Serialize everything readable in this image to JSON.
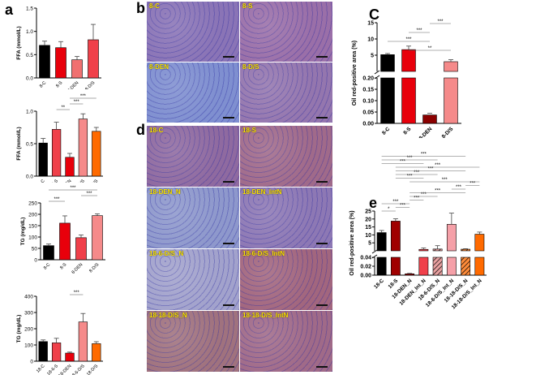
{
  "panels": {
    "a": {
      "letter": "a"
    },
    "b": {
      "letter": "b",
      "images": [
        {
          "label": "8-C",
          "tone": "#8a74b6"
        },
        {
          "label": "8-S",
          "tone": "#9a6fa8"
        },
        {
          "label": "8-DEN",
          "tone": "#7f8fd0"
        },
        {
          "label": "8-D/S",
          "tone": "#9476ae"
        }
      ]
    },
    "c": {
      "letter": "C"
    },
    "d": {
      "letter": "d",
      "images": [
        {
          "label": "18-C",
          "tone": "#8f6aa0"
        },
        {
          "label": "18-S",
          "tone": "#a06a8a"
        },
        {
          "label": "18-DEN_N",
          "tone": "#8e98cc"
        },
        {
          "label": "18-DEN_IntN",
          "tone": "#8d78b4"
        },
        {
          "label": "18-6-D/S_N",
          "tone": "#a2a2cc"
        },
        {
          "label": "18-6-D/S_IntN",
          "tone": "#a2667e"
        },
        {
          "label": "18-18-D/S_N",
          "tone": "#a0727e"
        },
        {
          "label": "18-18-D/S_IntN",
          "tone": "#a06a88"
        }
      ]
    },
    "e": {
      "letter": "e"
    }
  },
  "chart_data": [
    {
      "id": "a1",
      "type": "bar",
      "title": "",
      "ylabel": "FFA (mmol/L)",
      "ylim": [
        0,
        1.5
      ],
      "yticks": [
        "0.0",
        "0.5",
        "1.0",
        "1.5"
      ],
      "categories": [
        "8-C",
        "8-S",
        "8-DEN",
        "8-D/S"
      ],
      "values": [
        0.7,
        0.65,
        0.39,
        0.82
      ],
      "errors": [
        0.09,
        0.13,
        0.07,
        0.33
      ],
      "colors": [
        "#000000",
        "#e8000b",
        "#f07070",
        "#f0404a"
      ],
      "significance": []
    },
    {
      "id": "a2",
      "type": "bar",
      "ylabel": "FFA (mmol/L)",
      "ylim": [
        0,
        1.0
      ],
      "yticks": [
        "0.0",
        "0.5",
        "1.0"
      ],
      "categories": [
        "18-C",
        "18-6-S",
        "18-DEN",
        "18-6-D/S",
        "18-18-D/S"
      ],
      "values": [
        0.51,
        0.72,
        0.29,
        0.88,
        0.69
      ],
      "errors": [
        0.07,
        0.11,
        0.06,
        0.08,
        0.06
      ],
      "colors": [
        "#000000",
        "#f0404a",
        "#e8000b",
        "#f58a8a",
        "#ff6a00"
      ],
      "significance": [
        {
          "from": 1,
          "to": 2,
          "label": "**"
        },
        {
          "from": 2,
          "to": 3,
          "label": "***"
        },
        {
          "from": 2,
          "to": 4,
          "label": "***"
        }
      ]
    },
    {
      "id": "a3",
      "type": "bar",
      "ylabel": "TG (mg/dL)",
      "ylim": [
        0,
        250
      ],
      "yticks": [
        "0",
        "50",
        "100",
        "150",
        "200",
        "250"
      ],
      "categories": [
        "8-C",
        "8-S",
        "8-DEN",
        "8-D/S"
      ],
      "values": [
        62,
        161,
        97,
        194
      ],
      "errors": [
        7,
        32,
        12,
        8
      ],
      "colors": [
        "#000000",
        "#e8000b",
        "#f0404a",
        "#f58a8a"
      ],
      "significance": [
        {
          "from": 0,
          "to": 1,
          "label": "***"
        },
        {
          "from": 2,
          "to": 3,
          "label": "***"
        },
        {
          "from": 0,
          "to": 3,
          "label": "***"
        }
      ]
    },
    {
      "id": "a4",
      "type": "bar",
      "ylabel": "TG (mg/dL)",
      "ylim": [
        0,
        400
      ],
      "yticks": [
        "0",
        "100",
        "200",
        "300",
        "400"
      ],
      "categories": [
        "18-C",
        "18-6-S",
        "18-DEN",
        "18-6-D/S",
        "18-18-D/S"
      ],
      "values": [
        121,
        113,
        50,
        242,
        108
      ],
      "errors": [
        10,
        28,
        6,
        52,
        12
      ],
      "colors": [
        "#000000",
        "#f0404a",
        "#e8000b",
        "#f58a8a",
        "#ff6a00"
      ],
      "significance": [
        {
          "from": 2,
          "to": 3,
          "label": "***"
        }
      ]
    },
    {
      "id": "c",
      "type": "bar",
      "broken_axis": true,
      "ylabel": "Oil red-positive area (%)",
      "yticks_upper": [
        "5",
        "10",
        "15"
      ],
      "yticks_lower": [
        "0.00",
        "0.05",
        "0.10",
        "0.15",
        "0.20"
      ],
      "categories": [
        "8-C",
        "8-S",
        "8-DEN",
        "8-D/S"
      ],
      "values": [
        6.8,
        8.1,
        0.037,
        5.0
      ],
      "errors": [
        0.3,
        0.9,
        0.008,
        0.5
      ],
      "colors": [
        "#000000",
        "#e8000b",
        "#8b0000",
        "#f58a8a"
      ],
      "significance": [
        {
          "from": 1,
          "to": 3,
          "label": "**"
        },
        {
          "from": 0,
          "to": 2,
          "label": "***"
        },
        {
          "from": 1,
          "to": 2,
          "label": "***"
        },
        {
          "from": 2,
          "to": 3,
          "label": "***"
        }
      ]
    },
    {
      "id": "e",
      "type": "bar",
      "broken_axis": true,
      "ylabel": "Oil red-positive area (%)",
      "yticks_upper": [
        "5",
        "10",
        "15",
        "20",
        "25"
      ],
      "yticks_lower": [
        "0.00",
        "0.02",
        "0.04"
      ],
      "categories": [
        "18-C",
        "18-S",
        "18-DEN_N",
        "18-DEN_Int_N",
        "18-6-D/S_N",
        "18-6-D/S_Int_N",
        "18-18-D/S_N",
        "18-18-D/S_Int_N"
      ],
      "values": [
        12.8,
        19.3,
        0.003,
        3.3,
        3.5,
        17.5,
        3.4,
        11.9
      ],
      "errors": [
        1.2,
        1.3,
        0.001,
        0.8,
        1.9,
        6.3,
        0.3,
        1.2
      ],
      "colors": [
        "#000000",
        "#a00000",
        "#8b0000",
        "#f0404a",
        "#e8a0a0",
        "#f5a0a8",
        "#ff8c3a",
        "#ff6a00"
      ],
      "hatched": [
        false,
        false,
        false,
        false,
        true,
        false,
        true,
        false
      ],
      "significance": [
        {
          "from": 0,
          "to": 1,
          "label": "*"
        },
        {
          "from": 1,
          "to": 2,
          "label": "***"
        },
        {
          "from": 0,
          "to": 2,
          "label": "***"
        },
        {
          "from": 2,
          "to": 3,
          "label": "***"
        },
        {
          "from": 2,
          "to": 4,
          "label": "***"
        },
        {
          "from": 2,
          "to": 6,
          "label": "***"
        },
        {
          "from": 5,
          "to": 6,
          "label": "***"
        },
        {
          "from": 6,
          "to": 7,
          "label": "***"
        },
        {
          "from": 2,
          "to": 7,
          "label": "***"
        },
        {
          "from": 1,
          "to": 3,
          "label": "***"
        },
        {
          "from": 1,
          "to": 4,
          "label": "***"
        },
        {
          "from": 1,
          "to": 6,
          "label": "***"
        },
        {
          "from": 1,
          "to": 7,
          "label": "***"
        },
        {
          "from": 0,
          "to": 3,
          "label": "***"
        },
        {
          "from": 0,
          "to": 4,
          "label": "***"
        },
        {
          "from": 0,
          "to": 6,
          "label": "***"
        }
      ]
    }
  ]
}
